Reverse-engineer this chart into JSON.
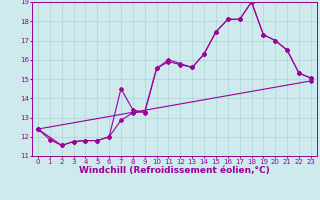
{
  "xlabel": "Windchill (Refroidissement éolien,°C)",
  "bg_color": "#ceeaed",
  "line_color": "#990099",
  "xlim": [
    -0.5,
    23.5
  ],
  "ylim": [
    11,
    19
  ],
  "xticks": [
    0,
    1,
    2,
    3,
    4,
    5,
    6,
    7,
    8,
    9,
    10,
    11,
    12,
    13,
    14,
    15,
    16,
    17,
    18,
    19,
    20,
    21,
    22,
    23
  ],
  "yticks": [
    11,
    12,
    13,
    14,
    15,
    16,
    17,
    18,
    19
  ],
  "line1_x": [
    0,
    1,
    2,
    3,
    4,
    5,
    6,
    7,
    8,
    9,
    10,
    11,
    12,
    13,
    14,
    15,
    16,
    17,
    18,
    19,
    20,
    21,
    22,
    23
  ],
  "line1_y": [
    12.4,
    11.85,
    11.55,
    11.75,
    11.8,
    11.8,
    12.0,
    12.85,
    13.25,
    13.3,
    15.55,
    16.0,
    15.8,
    15.6,
    16.3,
    17.45,
    18.1,
    18.1,
    19.0,
    17.3,
    17.0,
    16.5,
    15.3,
    15.05
  ],
  "line2_x": [
    0,
    2,
    3,
    4,
    5,
    6,
    7,
    8,
    9,
    10,
    11,
    12,
    13,
    14,
    15,
    16,
    17,
    18,
    19,
    20,
    21,
    22,
    23
  ],
  "line2_y": [
    12.4,
    11.55,
    11.75,
    11.8,
    11.8,
    12.0,
    14.5,
    13.4,
    13.25,
    15.55,
    15.9,
    15.75,
    15.6,
    16.3,
    17.45,
    18.1,
    18.1,
    19.0,
    17.3,
    17.0,
    16.5,
    15.3,
    15.05
  ],
  "line3_x": [
    0,
    23
  ],
  "line3_y": [
    12.4,
    14.9
  ],
  "marker": "D",
  "markersize": 2.0,
  "linewidth": 0.8,
  "grid_color": "#aed4da",
  "tick_fontsize": 5.0,
  "xlabel_fontsize": 6.5
}
